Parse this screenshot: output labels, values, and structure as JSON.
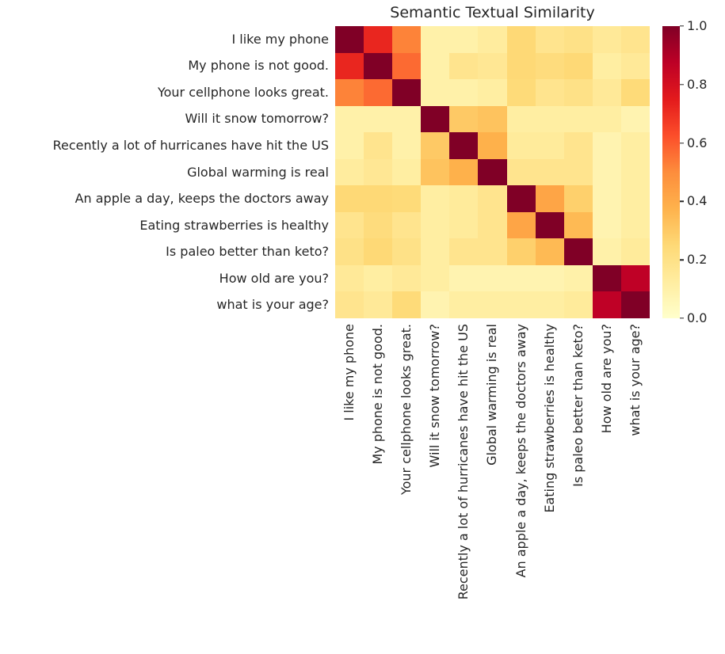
{
  "page": {
    "background": "#ffffff",
    "text_color": "#262626"
  },
  "chart_data": {
    "type": "heatmap",
    "title": "Semantic Textual Similarity",
    "labels": [
      "I like my phone",
      "My phone is not good.",
      "Your cellphone looks great.",
      "Will it snow tomorrow?",
      "Recently a lot of hurricanes have hit the US",
      "Global warming is real",
      "An apple a day, keeps the doctors away",
      "Eating strawberries is healthy",
      "Is paleo better than keto?",
      "How old are you?",
      "what is your age?"
    ],
    "matrix": [
      [
        1.0,
        0.72,
        0.52,
        0.1,
        0.1,
        0.13,
        0.25,
        0.18,
        0.2,
        0.15,
        0.18
      ],
      [
        0.72,
        1.0,
        0.57,
        0.1,
        0.18,
        0.16,
        0.25,
        0.23,
        0.25,
        0.12,
        0.15
      ],
      [
        0.52,
        0.57,
        1.0,
        0.1,
        0.1,
        0.12,
        0.24,
        0.18,
        0.2,
        0.15,
        0.24
      ],
      [
        0.1,
        0.1,
        0.1,
        1.0,
        0.3,
        0.32,
        0.12,
        0.12,
        0.12,
        0.12,
        0.08
      ],
      [
        0.1,
        0.18,
        0.1,
        0.3,
        1.0,
        0.38,
        0.14,
        0.14,
        0.18,
        0.08,
        0.12
      ],
      [
        0.13,
        0.16,
        0.12,
        0.32,
        0.38,
        1.0,
        0.18,
        0.18,
        0.18,
        0.08,
        0.12
      ],
      [
        0.25,
        0.25,
        0.24,
        0.12,
        0.14,
        0.18,
        1.0,
        0.42,
        0.28,
        0.08,
        0.12
      ],
      [
        0.18,
        0.23,
        0.18,
        0.12,
        0.14,
        0.18,
        0.42,
        1.0,
        0.35,
        0.08,
        0.12
      ],
      [
        0.2,
        0.25,
        0.2,
        0.12,
        0.18,
        0.18,
        0.28,
        0.35,
        1.0,
        0.1,
        0.14
      ],
      [
        0.15,
        0.12,
        0.15,
        0.12,
        0.08,
        0.08,
        0.08,
        0.08,
        0.1,
        1.0,
        0.87
      ],
      [
        0.18,
        0.15,
        0.24,
        0.08,
        0.12,
        0.12,
        0.12,
        0.12,
        0.14,
        0.87,
        1.0
      ]
    ],
    "vmin": 0.0,
    "vmax": 1.0,
    "grid": false,
    "legend_position": "right-colorbar",
    "colormap": {
      "name": "YlOrRd",
      "stops": [
        "#ffffcc",
        "#ffeda0",
        "#fed976",
        "#feb24c",
        "#fd8d3c",
        "#fc4e2a",
        "#e31a1c",
        "#bd0026",
        "#800026"
      ]
    },
    "colorbar_ticks": [
      {
        "value": 1.0,
        "label": "1.0"
      },
      {
        "value": 0.8,
        "label": "0.8"
      },
      {
        "value": 0.6,
        "label": "0.6"
      },
      {
        "value": 0.4,
        "label": "0.4"
      },
      {
        "value": 0.2,
        "label": "0.2"
      },
      {
        "value": 0.0,
        "label": "0.0"
      }
    ]
  }
}
